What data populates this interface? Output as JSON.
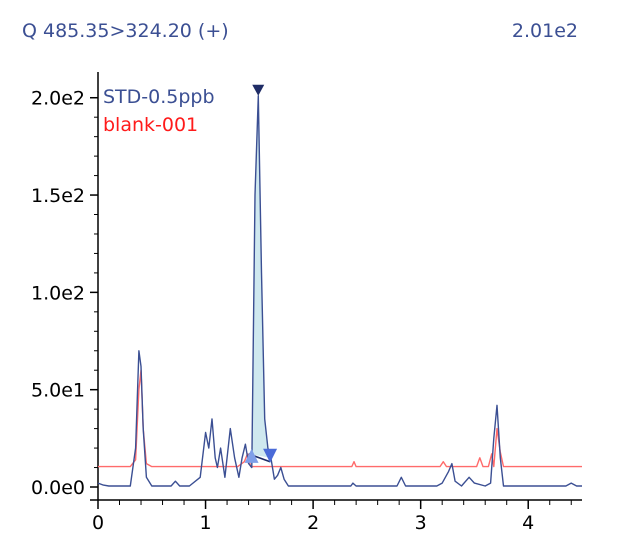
{
  "header": {
    "transition": "Q 485.35>324.20 (+)",
    "max_intensity": "2.01e2"
  },
  "colors": {
    "std_line": "#3b4f93",
    "blank_line": "#ff6b6b",
    "peak_fill": "#cfe8ef",
    "marker_apex": "#1f2c66",
    "marker_start": "#7f9ee8",
    "marker_end": "#4a6bd8"
  },
  "chart_data": {
    "type": "line",
    "xlabel": "",
    "ylabel": "",
    "xlim": [
      0,
      4.5
    ],
    "ylim": [
      -2,
      205
    ],
    "x_ticks": [
      "0",
      "1",
      "2",
      "3",
      "4"
    ],
    "x_tick_values": [
      0,
      1,
      2,
      3,
      4
    ],
    "y_ticks": [
      "0.0e0",
      "5.0e1",
      "1.0e2",
      "1.5e2",
      "2.0e2"
    ],
    "y_tick_values": [
      0,
      50,
      100,
      150,
      200
    ],
    "legend": [
      "STD-0.5ppb",
      "blank-001"
    ],
    "legend_position": "top-left",
    "series": [
      {
        "name": "STD-0.5ppb",
        "color": "#3b4f93",
        "x": [
          0,
          0.05,
          0.1,
          0.2,
          0.3,
          0.35,
          0.38,
          0.4,
          0.42,
          0.45,
          0.5,
          0.6,
          0.68,
          0.72,
          0.76,
          0.85,
          0.95,
          1.0,
          1.03,
          1.06,
          1.09,
          1.11,
          1.14,
          1.18,
          1.23,
          1.27,
          1.31,
          1.34,
          1.37,
          1.4,
          1.43,
          1.46,
          1.49,
          1.52,
          1.55,
          1.58,
          1.61,
          1.64,
          1.67,
          1.7,
          1.73,
          1.77,
          1.85,
          2.0,
          2.2,
          2.35,
          2.37,
          2.4,
          2.6,
          2.78,
          2.82,
          2.86,
          3.0,
          3.15,
          3.2,
          3.26,
          3.29,
          3.32,
          3.38,
          3.45,
          3.5,
          3.6,
          3.65,
          3.68,
          3.71,
          3.74,
          3.77,
          3.85,
          4.0,
          4.2,
          4.35,
          4.4,
          4.45,
          4.5
        ],
        "y": [
          2,
          1,
          0.5,
          0.5,
          0.5,
          20,
          70,
          62,
          30,
          5,
          0.5,
          0.5,
          0.5,
          3,
          0.5,
          0.5,
          5,
          28,
          20,
          35,
          15,
          10,
          20,
          5,
          30,
          15,
          5,
          15,
          22,
          12,
          10,
          150,
          201,
          110,
          35,
          20,
          14,
          4,
          6,
          10,
          4,
          0.5,
          0.5,
          0.5,
          0.5,
          0.5,
          2,
          0.5,
          0.5,
          0.5,
          5,
          0.5,
          0.5,
          0.5,
          2,
          8,
          12,
          3,
          0.5,
          5,
          2,
          0.5,
          2,
          25,
          42,
          15,
          0.5,
          0.5,
          0.5,
          0.5,
          0.5,
          2,
          0.5,
          0.5
        ]
      },
      {
        "name": "blank-001",
        "color": "#ff6b6b",
        "x": [
          0,
          0.3,
          0.35,
          0.38,
          0.4,
          0.42,
          0.45,
          0.5,
          1.3,
          1.36,
          1.39,
          1.42,
          2.36,
          2.38,
          2.4,
          3.18,
          3.21,
          3.24,
          3.52,
          3.55,
          3.58,
          3.63,
          3.66,
          3.68,
          3.71,
          3.74,
          3.77,
          4.5
        ],
        "y": [
          10.5,
          10.5,
          14,
          50,
          60,
          30,
          12,
          10.5,
          10.5,
          13,
          17,
          10.5,
          10.5,
          13,
          10.5,
          10.5,
          13,
          10.5,
          10.5,
          15,
          10.5,
          10.5,
          17,
          10.5,
          30,
          18,
          10.5,
          10.5
        ]
      }
    ],
    "integrated_peak": {
      "start_x": 1.4,
      "apex_x": 1.49,
      "end_x": 1.6,
      "apex_y": 201,
      "baseline_start_y": 17,
      "baseline_end_y": 15
    }
  }
}
